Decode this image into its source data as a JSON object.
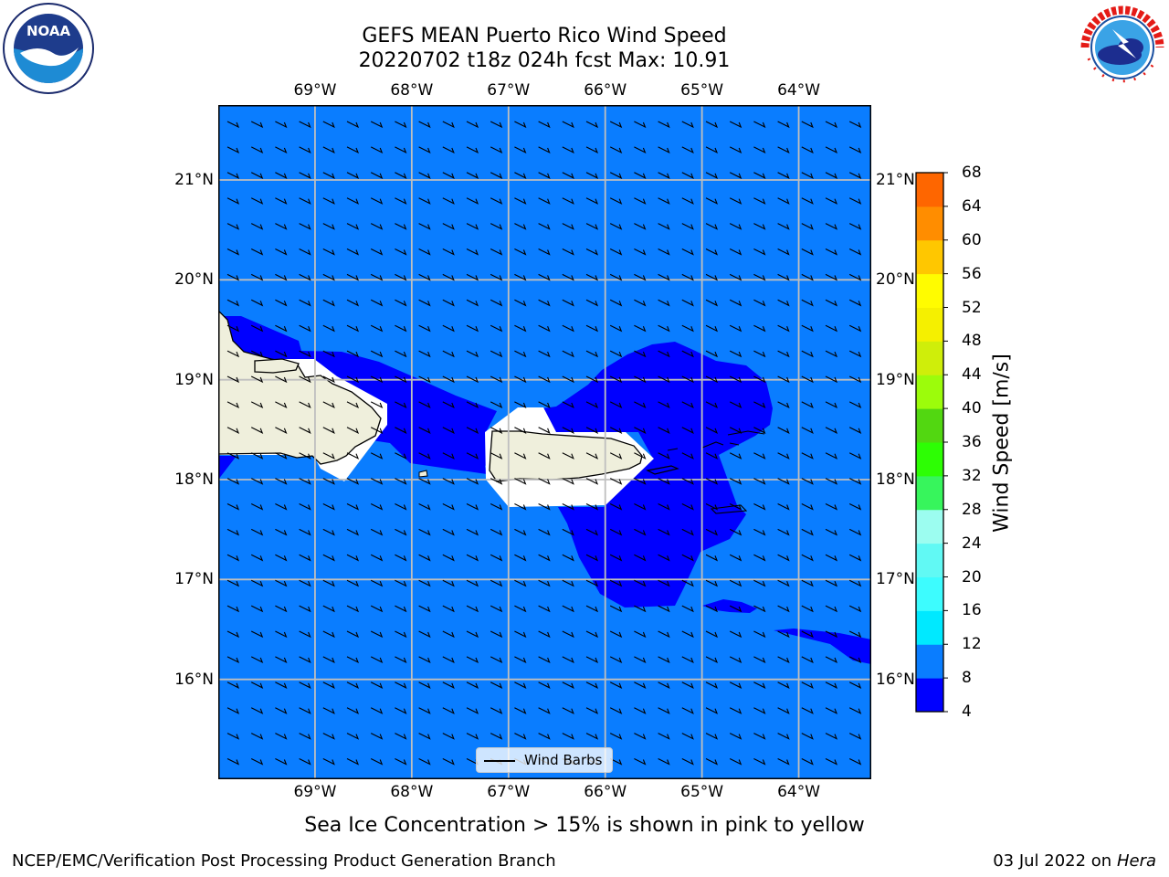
{
  "header": {
    "title_line1": "GEFS MEAN Puerto Rico Wind Speed",
    "title_line2": "20220702 t18z 024h fcst   Max: 10.91"
  },
  "logos": {
    "left": {
      "name": "noaa-logo",
      "text": "NOAA",
      "ring_text": "NATIONAL OCEANIC AND ATMOSPHERIC ADMINISTRATION · U.S. DEPARTMENT OF COMMERCE"
    },
    "right": {
      "name": "nws-logo",
      "ring_text": "NATIONAL WEATHER SERVICE"
    }
  },
  "map": {
    "lon_labels": [
      "69°W",
      "68°W",
      "67°W",
      "66°W",
      "65°W",
      "64°W"
    ],
    "lat_labels": [
      "21°N",
      "20°N",
      "19°N",
      "18°N",
      "17°N",
      "16°N"
    ],
    "lon_range": [
      -70.0,
      -63.25
    ],
    "lat_range": [
      15.0,
      21.75
    ],
    "background_wind_color": "#0a7dff",
    "stronger_wind_color": "#0000ff",
    "land_color": "#efefdc",
    "barb_color": "#000000"
  },
  "colorbar": {
    "title": "Wind Speed [m/s]",
    "levels": [
      4,
      8,
      12,
      16,
      20,
      24,
      28,
      32,
      36,
      40,
      44,
      48,
      52,
      56,
      60,
      64,
      68
    ],
    "colors": [
      "#0000ff",
      "#0a7dff",
      "#00e9ff",
      "#3dfcfe",
      "#61f9f4",
      "#9cfdf0",
      "#37f55c",
      "#2dfe04",
      "#52d711",
      "#9cfc0b",
      "#cfee0a",
      "#f5f000",
      "#fffc00",
      "#ffc700",
      "#ff8d00",
      "#fe6600",
      "#ff2900",
      "#ff0000"
    ]
  },
  "legend": {
    "label": "Wind Barbs"
  },
  "note": "Sea Ice Concentration > 15% is shown in pink to yellow",
  "footer": {
    "left": "NCEP/EMC/Verification Post Processing Product Generation Branch",
    "right_prefix": "03 Jul 2022 on ",
    "right_machine": "Hera"
  }
}
